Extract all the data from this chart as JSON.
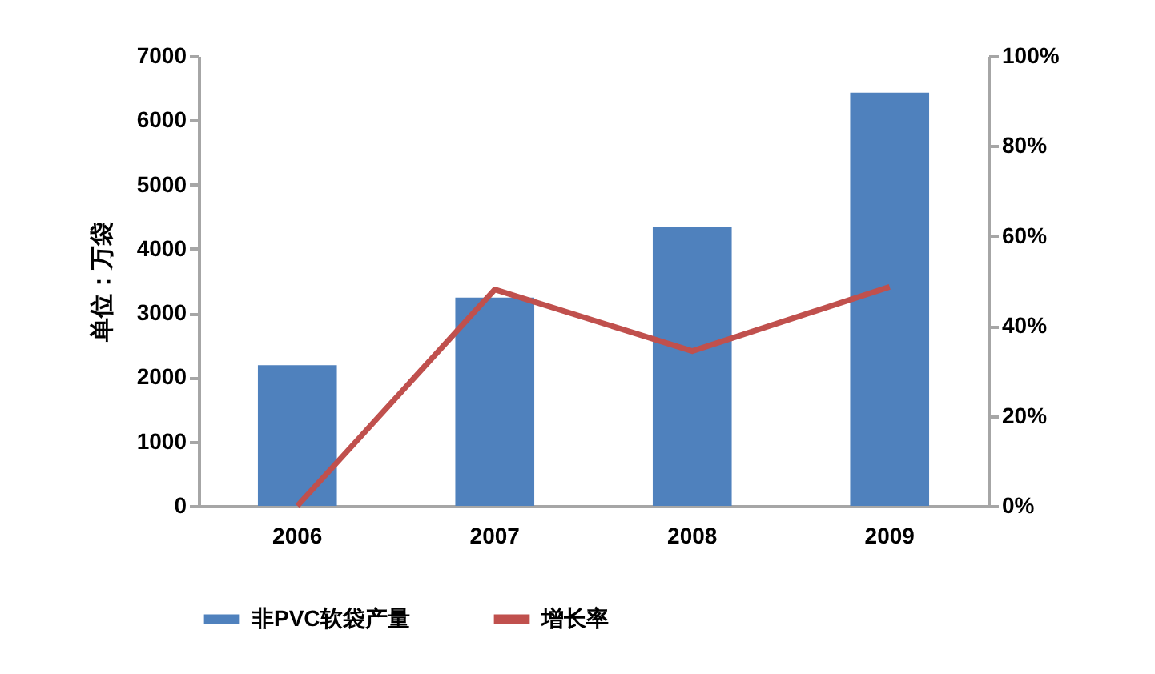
{
  "chart_data": {
    "type": "bar",
    "ylabel": "单位：万袋",
    "categories": [
      "2006",
      "2007",
      "2008",
      "2009"
    ],
    "series": [
      {
        "name": "非PVC软袋产量",
        "color": "#4f81bd",
        "values": [
          2190,
          3240,
          4340,
          6430
        ]
      },
      {
        "name": "增长率",
        "type": "line",
        "axis": "y2",
        "color": "#c0504d",
        "values": [
          0,
          48.1,
          34.4,
          48.7
        ]
      }
    ],
    "ylim": [
      0,
      7000
    ],
    "yticks": [
      0,
      1000,
      2000,
      3000,
      4000,
      5000,
      6000,
      7000
    ],
    "y2lim": [
      0,
      100
    ],
    "y2ticks": [
      {
        "value": 0,
        "label": "0%"
      },
      {
        "value": 20,
        "label": "20%"
      },
      {
        "value": 40,
        "label": "40%"
      },
      {
        "value": 60,
        "label": "60%"
      },
      {
        "value": 80,
        "label": "80%"
      },
      {
        "value": 100,
        "label": "100%"
      }
    ],
    "legend": "bottom",
    "grid": false,
    "marker": "none",
    "line_style": "solid"
  }
}
